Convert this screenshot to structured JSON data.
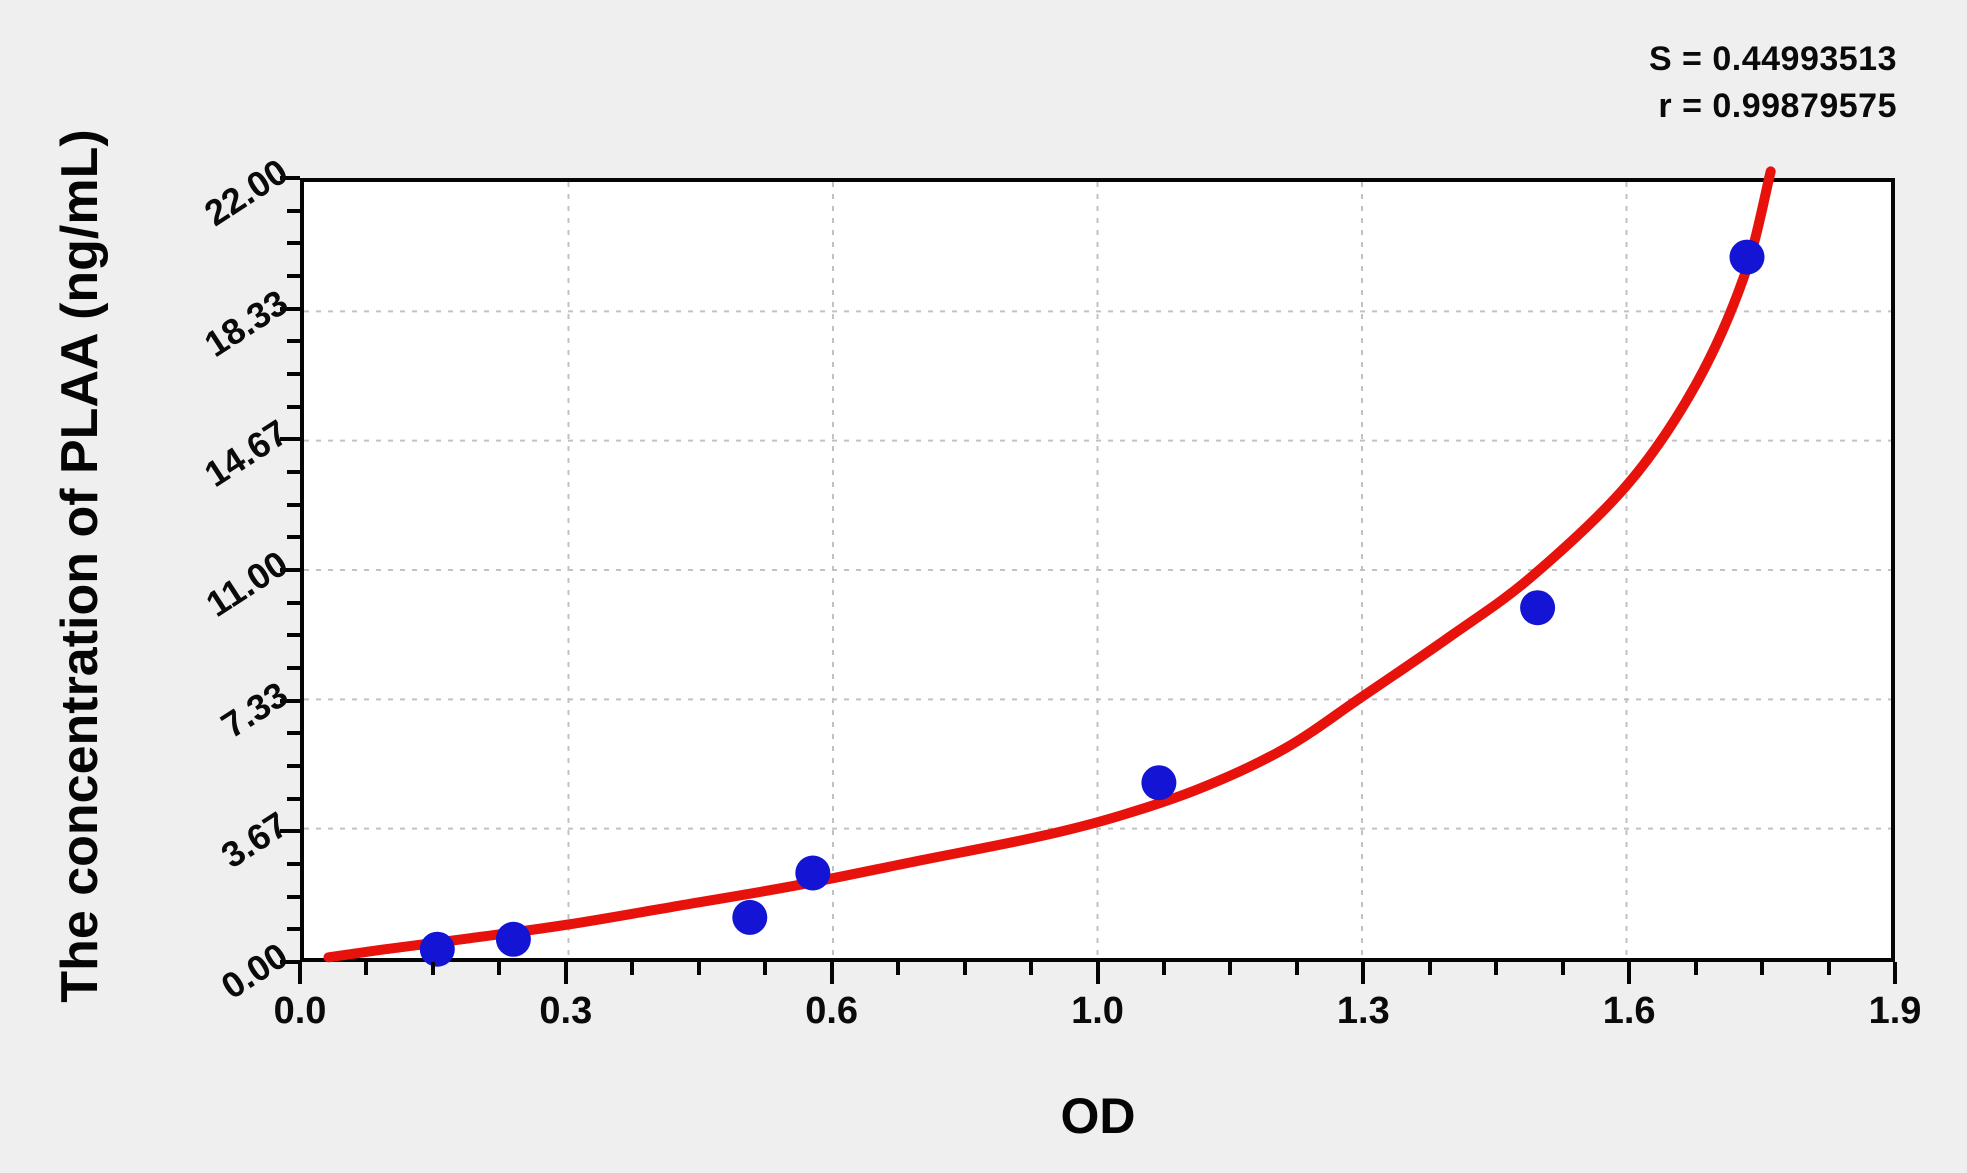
{
  "stats": {
    "s_label": "S = 0.44993513",
    "r_label": "r = 0.99879575"
  },
  "axes": {
    "x_title": "OD",
    "y_title": "The concentration of PLAA (ng/mL)"
  },
  "colors": {
    "background": "#efefef",
    "plot_background": "#ffffff",
    "axis": "#050505",
    "gridline": "#c2c2c2",
    "point_fill": "#1414d4",
    "curve_stroke": "#e8120c",
    "text": "#0a0a0a"
  },
  "chart_data": {
    "type": "scatter",
    "title": "",
    "xlabel": "OD",
    "ylabel": "The concentration of PLAA (ng/mL)",
    "xlim": [
      0,
      1.94
    ],
    "ylim": [
      0,
      22
    ],
    "x_tick_labels": [
      "0.0",
      "0.3",
      "0.6",
      "1.0",
      "1.3",
      "1.6",
      "1.9"
    ],
    "x_tick_values": [
      0,
      0.323,
      0.647,
      0.97,
      1.293,
      1.617,
      1.94
    ],
    "y_tick_labels": [
      "0.00",
      "3.67",
      "7.33",
      "11.00",
      "14.67",
      "18.33",
      "22.00"
    ],
    "y_tick_values": [
      0,
      3.67,
      7.33,
      11.0,
      14.67,
      18.33,
      22.0
    ],
    "minor_ticks_between_majors": 3,
    "grid": "dashed gray at major ticks, both axes",
    "legend_position": "none",
    "annotations": [
      "S = 0.44993513",
      "r = 0.99879575"
    ],
    "series": [
      {
        "name": "standard-points",
        "type": "scatter",
        "marker": "circle",
        "color": "#1414d4",
        "points": [
          [
            0.163,
            0.25
          ],
          [
            0.256,
            0.53
          ],
          [
            0.545,
            1.15
          ],
          [
            0.622,
            2.41
          ],
          [
            1.045,
            4.97
          ],
          [
            1.508,
            9.93
          ],
          [
            1.764,
            19.87
          ]
        ]
      },
      {
        "name": "fitted-standard-curve",
        "type": "line",
        "color": "#e8120c",
        "points": [
          [
            0.03,
            0.02
          ],
          [
            0.1,
            0.25
          ],
          [
            0.2,
            0.55
          ],
          [
            0.323,
            0.95
          ],
          [
            0.45,
            1.45
          ],
          [
            0.6,
            2.05
          ],
          [
            0.75,
            2.75
          ],
          [
            0.9,
            3.45
          ],
          [
            1.0,
            4.05
          ],
          [
            1.1,
            4.85
          ],
          [
            1.2,
            5.95
          ],
          [
            1.293,
            7.4
          ],
          [
            1.4,
            9.1
          ],
          [
            1.5,
            10.8
          ],
          [
            1.617,
            13.4
          ],
          [
            1.7,
            16.2
          ],
          [
            1.76,
            19.3
          ],
          [
            1.793,
            22.3
          ]
        ]
      }
    ]
  }
}
